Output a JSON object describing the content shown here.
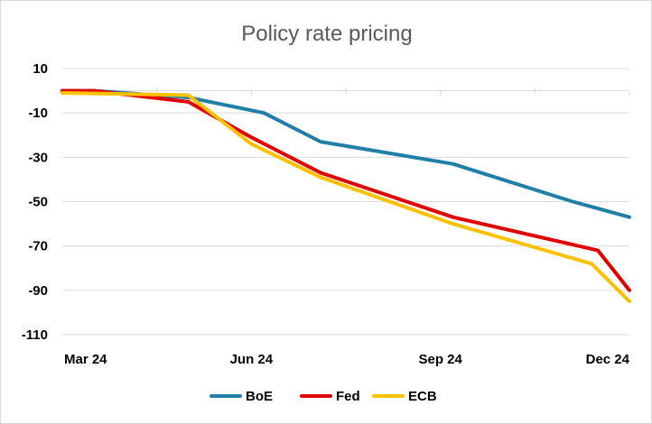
{
  "chart_data": {
    "type": "line",
    "title": "Policy rate pricing",
    "xlabel": "",
    "ylabel": "",
    "x_tick_labels": [
      "Mar 24",
      "Jun 24",
      "Sep 24",
      "Dec 24"
    ],
    "y_ticks": [
      10,
      -10,
      -30,
      -50,
      -70,
      -90,
      -110
    ],
    "ylim": [
      -110,
      10
    ],
    "xlim": [
      0,
      9
    ],
    "x_tick_positions": [
      0,
      3,
      6,
      9
    ],
    "grid": true,
    "legend_position": "bottom",
    "series": [
      {
        "name": "BoE",
        "color": "#1f7fa8",
        "x": [
          0,
          0.5,
          2.0,
          3.2,
          4.1,
          6.2,
          8.1,
          9.0
        ],
        "y": [
          0,
          0,
          -3,
          -10,
          -23,
          -33,
          -50,
          -57
        ]
      },
      {
        "name": "Fed",
        "color": "#e00000",
        "x": [
          0,
          0.5,
          2.0,
          3.0,
          4.1,
          6.2,
          8.5,
          9.0
        ],
        "y": [
          0,
          0,
          -5,
          -21,
          -37,
          -57,
          -72,
          -90
        ]
      },
      {
        "name": "ECB",
        "color": "#ffc000",
        "x": [
          0,
          2.0,
          3.0,
          4.1,
          6.2,
          8.4,
          9.0
        ],
        "y": [
          -1,
          -2,
          -24,
          -39,
          -60,
          -78,
          -95
        ]
      }
    ]
  }
}
